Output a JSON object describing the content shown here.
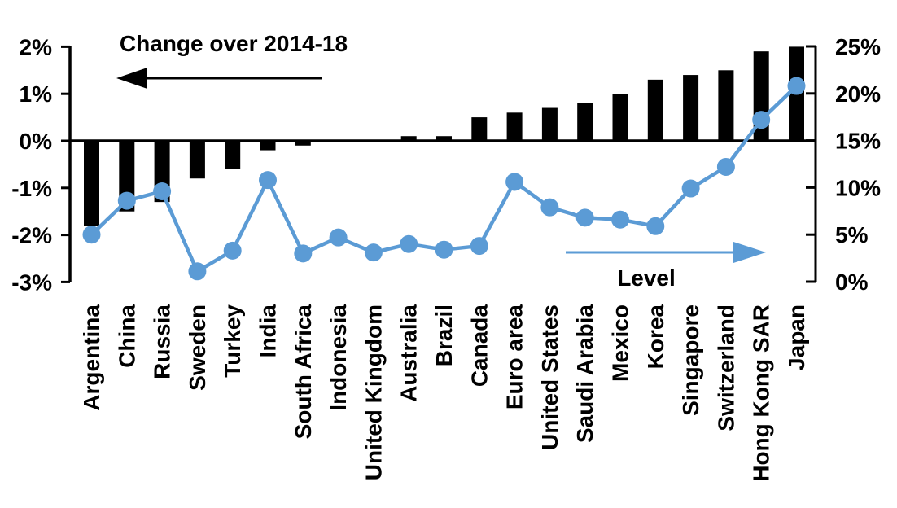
{
  "chart_data": {
    "type": "combo",
    "title": "",
    "categories": [
      "Argentina",
      "China",
      "Russia",
      "Sweden",
      "Turkey",
      "India",
      "South Africa",
      "Indonesia",
      "United Kingdom",
      "Australia",
      "Brazil",
      "Canada",
      "Euro area",
      "United States",
      "Saudi Arabia",
      "Mexico",
      "Korea",
      "Singapore",
      "Switzerland",
      "Hong Kong SAR",
      "Japan"
    ],
    "series": [
      {
        "name": "Change over 2014-18",
        "type": "bar",
        "axis": "left",
        "color": "#000000",
        "values": [
          -1.8,
          -1.5,
          -1.3,
          -0.8,
          -0.6,
          -0.2,
          -0.1,
          0,
          0,
          0.1,
          0.1,
          0.5,
          0.6,
          0.7,
          0.8,
          1.0,
          1.3,
          1.4,
          1.5,
          1.9,
          2.0
        ]
      },
      {
        "name": "Level",
        "type": "line",
        "axis": "right",
        "color": "#5B9BD5",
        "values": [
          5.0,
          8.6,
          9.6,
          1.1,
          3.3,
          10.8,
          3.0,
          4.7,
          3.1,
          4.0,
          3.4,
          3.8,
          10.6,
          7.9,
          6.8,
          6.6,
          5.9,
          9.9,
          12.2,
          17.2,
          20.8
        ]
      }
    ],
    "left_axis": {
      "tick_labels": [
        "2%",
        "1%",
        "0%",
        "-1%",
        "-2%",
        "-3%"
      ],
      "tick_values": [
        2,
        1,
        0,
        -1,
        -2,
        -3
      ],
      "min": -3,
      "max": 2
    },
    "right_axis": {
      "tick_labels": [
        "25%",
        "20%",
        "15%",
        "10%",
        "5%",
        "0%"
      ],
      "tick_values": [
        25,
        20,
        15,
        10,
        5,
        0
      ],
      "min": 0,
      "max": 25
    },
    "grid": false,
    "legend_position": "none"
  },
  "annotations": {
    "change_label": "Change over 2014-18",
    "change_arrow_direction": "left",
    "level_label": "Level",
    "level_arrow_direction": "right"
  },
  "colors": {
    "bar": "#000000",
    "line": "#5B9BD5",
    "text": "#000000",
    "background": "#FFFFFF"
  }
}
